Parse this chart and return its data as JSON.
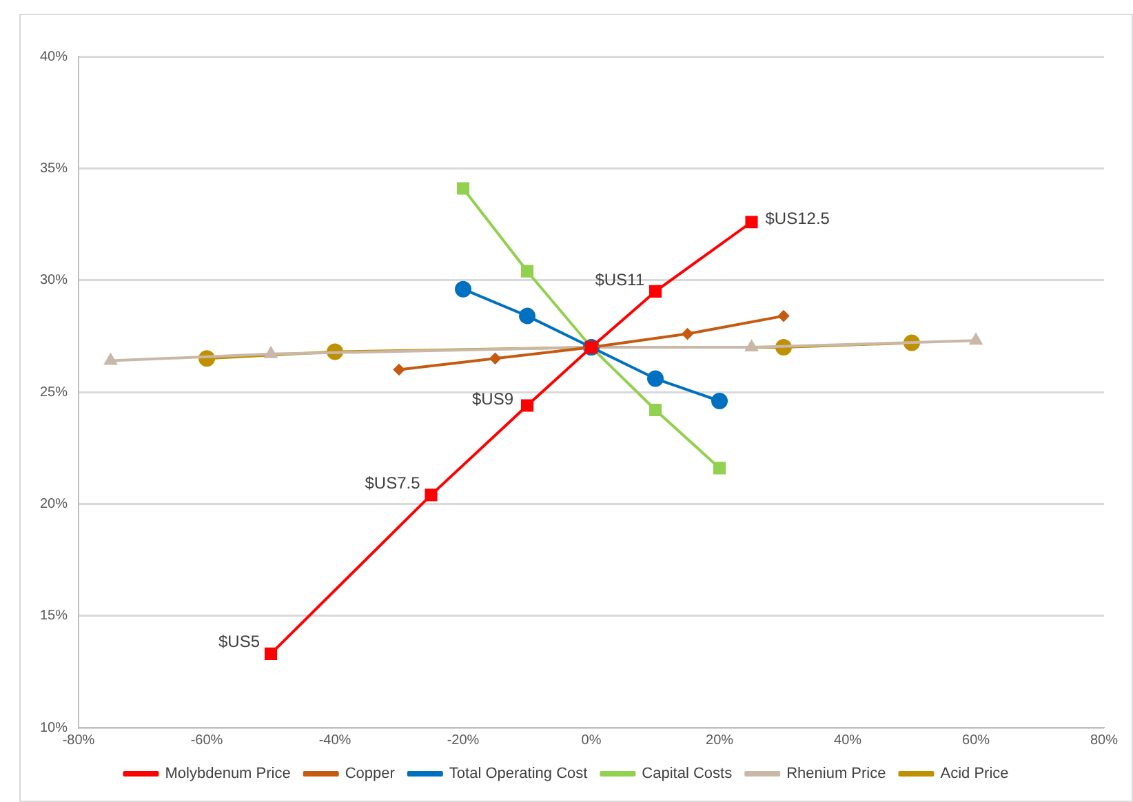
{
  "chart_data": {
    "type": "line",
    "grid": "y",
    "legend": "bottom",
    "line_style": "solid",
    "xlim": [
      -80,
      80
    ],
    "xticks": [
      {
        "value": -80,
        "label": "-80%"
      },
      {
        "value": -60,
        "label": "-60%"
      },
      {
        "value": -40,
        "label": "-40%"
      },
      {
        "value": -20,
        "label": "-20%"
      },
      {
        "value": 0,
        "label": "0%"
      },
      {
        "value": 20,
        "label": "20%"
      },
      {
        "value": 40,
        "label": "40%"
      },
      {
        "value": 60,
        "label": "60%"
      },
      {
        "value": 80,
        "label": "80%"
      }
    ],
    "ylim": [
      10,
      40
    ],
    "yticks": [
      {
        "value": 10,
        "label": "10%"
      },
      {
        "value": 15,
        "label": "15%"
      },
      {
        "value": 20,
        "label": "20%"
      },
      {
        "value": 25,
        "label": "25%"
      },
      {
        "value": 30,
        "label": "30%"
      },
      {
        "value": 35,
        "label": "35%"
      },
      {
        "value": 40,
        "label": "40%"
      }
    ],
    "series": [
      {
        "name": "Molybdenum Price",
        "color": "#ff0000",
        "marker": "square",
        "x": [
          -50,
          -25,
          -10,
          0,
          10,
          25
        ],
        "values": [
          13.3,
          20.4,
          24.4,
          27,
          29.5,
          32.6
        ]
      },
      {
        "name": "Copper",
        "color": "#c55a11",
        "marker": "diamond",
        "x": [
          -30,
          -15,
          0,
          15,
          30
        ],
        "values": [
          26.0,
          26.5,
          27,
          27.6,
          28.4
        ]
      },
      {
        "name": "Total Operating Cost",
        "color": "#0070c0",
        "marker": "circle",
        "x": [
          -20,
          -10,
          0,
          10,
          20
        ],
        "values": [
          29.6,
          28.4,
          27,
          25.6,
          24.6
        ]
      },
      {
        "name": "Capital Costs",
        "color": "#92d050",
        "marker": "square",
        "x": [
          -20,
          -10,
          0,
          10,
          20
        ],
        "values": [
          34.1,
          30.4,
          27,
          24.2,
          21.6
        ]
      },
      {
        "name": "Rhenium Price",
        "color": "#c9b8a8",
        "marker": "triangle",
        "x": [
          -75,
          -50,
          0,
          25,
          60
        ],
        "values": [
          26.4,
          26.7,
          27,
          27.0,
          27.3
        ]
      },
      {
        "name": "Acid Price",
        "color": "#bf9000",
        "marker": "circle",
        "x": [
          -60,
          -40,
          0,
          30,
          50
        ],
        "values": [
          26.5,
          26.8,
          27,
          27.0,
          27.2
        ]
      }
    ],
    "annotations": [
      {
        "text": "$US5",
        "x": -50,
        "y": 13.3
      },
      {
        "text": "$US7.5",
        "x": -25,
        "y": 20.4
      },
      {
        "text": "$US9",
        "x": -10,
        "y": 24.4
      },
      {
        "text": "$US11",
        "x": 10,
        "y": 29.5
      },
      {
        "text": "$US12.5",
        "x": 25,
        "y": 32.6
      }
    ]
  }
}
